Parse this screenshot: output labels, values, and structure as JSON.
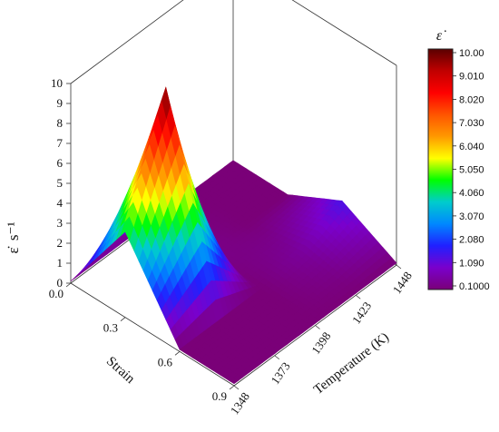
{
  "chart_data": {
    "type": "surface3d",
    "z_axis": {
      "label": "ε̇",
      "label_unit": "s⁻¹",
      "ticks": [
        "0",
        "1",
        "2",
        "3",
        "4",
        "5",
        "6",
        "7",
        "8",
        "9",
        "10"
      ],
      "range": [
        0,
        10
      ]
    },
    "strain_axis": {
      "label": "Strain",
      "ticks": [
        "0.0",
        "0.3",
        "0.6",
        "0.9"
      ],
      "range": [
        0,
        0.9
      ]
    },
    "temperature_axis": {
      "label": "Temperature (K)",
      "ticks": [
        "1348",
        "1373",
        "1398",
        "1423",
        "1448"
      ],
      "range": [
        1348,
        1448
      ]
    },
    "colorbar": {
      "title": "ε̇",
      "levels": [
        "10.00",
        "9.010",
        "8.020",
        "7.030",
        "6.040",
        "5.050",
        "4.060",
        "3.070",
        "2.080",
        "1.090",
        "0.1000"
      ],
      "range": [
        0.1,
        10
      ],
      "colors": [
        "#5a0000",
        "#c00000",
        "#ff0000",
        "#ff5500",
        "#ff9900",
        "#ffff00",
        "#00ff00",
        "#00cccc",
        "#0088ff",
        "#2020ff",
        "#7a00cc",
        "#7a0078"
      ]
    },
    "strain_values": [
      0.0,
      0.3,
      0.6,
      0.9
    ],
    "temperature_values": [
      1348,
      1373,
      1398,
      1423,
      1448
    ],
    "rows": [
      {
        "strain": 0.0,
        "values": [
          0.1,
          0.1,
          0.1,
          0.1,
          0.1
        ]
      },
      {
        "strain": 0.3,
        "values": [
          4.3,
          10.0,
          0.3,
          0.1,
          0.1
        ]
      },
      {
        "strain": 0.6,
        "values": [
          0.1,
          0.1,
          0.1,
          0.5,
          1.5
        ]
      },
      {
        "strain": 0.9,
        "values": [
          0.1,
          0.1,
          0.1,
          0.1,
          0.1
        ]
      }
    ],
    "grid": true
  }
}
